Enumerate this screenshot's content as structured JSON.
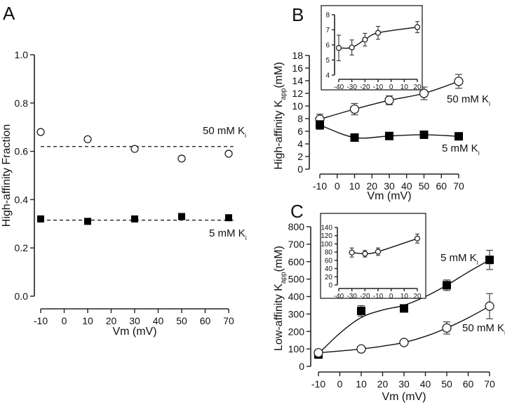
{
  "chart_data": [
    {
      "panel": "A",
      "type": "scatter",
      "xlabel": "Vm (mV)",
      "ylabel": "High-affinity Fraction",
      "xlim": [
        -10,
        70
      ],
      "ylim": [
        0.0,
        1.0
      ],
      "xticks": [
        -10,
        0,
        10,
        20,
        30,
        40,
        50,
        60,
        70
      ],
      "yticks": [
        "0.0",
        "0.2",
        "0.4",
        "0.6",
        "0.8",
        "1.0"
      ],
      "grid": false,
      "series": [
        {
          "name": "50 mM Ki",
          "label": "50 mM K",
          "sub": "i",
          "marker": "open-circle",
          "x": [
            -10,
            10,
            30,
            50,
            70
          ],
          "y": [
            0.68,
            0.65,
            0.61,
            0.57,
            0.59
          ],
          "mean_line": 0.62,
          "line_style": "dashed"
        },
        {
          "name": "5 mM Ki",
          "label": "5 mM K",
          "sub": "i",
          "marker": "filled-square",
          "x": [
            -10,
            10,
            30,
            50,
            70
          ],
          "y": [
            0.32,
            0.31,
            0.32,
            0.33,
            0.325
          ],
          "mean_line": 0.315,
          "line_style": "dashed"
        }
      ]
    },
    {
      "panel": "B",
      "type": "line",
      "xlabel": "Vm (mV)",
      "ylabel": "High-affinity K",
      "ylabel_sub": "app",
      "ylabel_unit": "(mM)",
      "xlim": [
        -10,
        70
      ],
      "ylim": [
        0,
        18
      ],
      "xticks": [
        -10,
        0,
        10,
        20,
        30,
        40,
        50,
        60,
        70
      ],
      "yticks": [
        0,
        2,
        4,
        6,
        8,
        10,
        12,
        14,
        16,
        18
      ],
      "grid": false,
      "series": [
        {
          "name": "50 mM Ki",
          "label": "50 mM K",
          "sub": "i",
          "marker": "open-circle",
          "x": [
            -10,
            10,
            30,
            50,
            70
          ],
          "y": [
            7.9,
            9.5,
            10.9,
            12.0,
            13.9
          ],
          "err": [
            0.8,
            0.9,
            0.7,
            1.0,
            1.1
          ]
        },
        {
          "name": "5 mM Ki",
          "label": "5 mM K",
          "sub": "i",
          "marker": "filled-square",
          "x": [
            -10,
            10,
            30,
            50,
            70
          ],
          "y": [
            7.0,
            5.0,
            5.25,
            5.45,
            5.2
          ],
          "err": [
            0.7,
            0.2,
            0.2,
            0.2,
            0.2
          ]
        }
      ],
      "inset": {
        "xlim": [
          -40,
          20
        ],
        "ylim": [
          4,
          8
        ],
        "xticks": [
          -40,
          -30,
          -20,
          -10,
          0,
          10,
          20
        ],
        "yticks": [
          4,
          5,
          6,
          7,
          8
        ],
        "series": [
          {
            "marker": "open-circle",
            "x": [
              -40,
              -30,
              -20,
              -10,
              20
            ],
            "y": [
              5.8,
              5.83,
              6.35,
              6.8,
              7.18
            ],
            "err": [
              0.85,
              0.5,
              0.42,
              0.43,
              0.37
            ]
          }
        ]
      }
    },
    {
      "panel": "C",
      "type": "line",
      "xlabel": "Vm (mV)",
      "ylabel": "Low-affinity K",
      "ylabel_sub": "app",
      "ylabel_unit": "(mM)",
      "xlim": [
        -10,
        70
      ],
      "ylim": [
        0,
        800
      ],
      "xticks": [
        -10,
        0,
        10,
        20,
        30,
        40,
        50,
        60,
        70
      ],
      "yticks": [
        0,
        100,
        200,
        300,
        400,
        500,
        600,
        700,
        800
      ],
      "grid": false,
      "series": [
        {
          "name": "5 mM Ki",
          "label": "5 mM K",
          "sub": "i",
          "marker": "filled-square",
          "x": [
            -10,
            10,
            30,
            50,
            70
          ],
          "y": [
            68,
            318,
            332,
            465,
            610
          ],
          "err": [
            8,
            30,
            15,
            30,
            55
          ],
          "fit_curve": [
            [
              -10,
              72
            ],
            [
              0,
              190
            ],
            [
              10,
              280
            ],
            [
              20,
              323
            ],
            [
              30,
              350
            ],
            [
              40,
              400
            ],
            [
              50,
              465
            ],
            [
              60,
              540
            ],
            [
              70,
              610
            ]
          ]
        },
        {
          "name": "50 mM Ki",
          "label": "50 mM K",
          "sub": "i",
          "marker": "open-circle",
          "x": [
            -10,
            10,
            30,
            50,
            70
          ],
          "y": [
            78,
            100,
            137,
            220,
            345
          ],
          "err": [
            8,
            8,
            10,
            35,
            72
          ],
          "fit_curve": [
            [
              -10,
              78
            ],
            [
              0,
              88
            ],
            [
              10,
              100
            ],
            [
              20,
              116
            ],
            [
              30,
              137
            ],
            [
              40,
              172
            ],
            [
              50,
              220
            ],
            [
              60,
              278
            ],
            [
              70,
              345
            ]
          ]
        }
      ],
      "inset": {
        "xlim": [
          -40,
          20
        ],
        "ylim": [
          0,
          140
        ],
        "xticks": [
          -40,
          -30,
          -20,
          -10,
          0,
          10,
          20
        ],
        "yticks": [
          0,
          20,
          40,
          60,
          80,
          100,
          120,
          140
        ],
        "series": [
          {
            "marker": "open-circle",
            "x": [
              -30,
              -20,
              -10,
              20
            ],
            "y": [
              79,
              76,
              81,
              113
            ],
            "err": [
              11,
              8,
              9,
              11
            ]
          }
        ]
      }
    }
  ]
}
